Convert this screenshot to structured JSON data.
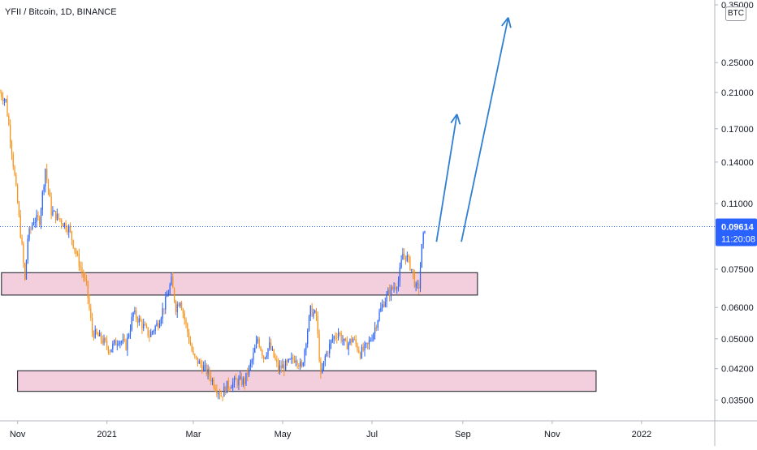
{
  "chart_data": {
    "type": "candlestick",
    "title": "YFII / Bitcoin, 1D, BINANCE",
    "currency": "BTC",
    "y_scale": "log",
    "ylim": [
      0.031,
      0.36
    ],
    "y_ticks": [
      {
        "value": 0.035,
        "label": "0.03500"
      },
      {
        "value": 0.042,
        "label": "0.04200"
      },
      {
        "value": 0.05,
        "label": "0.05000"
      },
      {
        "value": 0.06,
        "label": "0.06000"
      },
      {
        "value": 0.075,
        "label": "0.07500"
      },
      {
        "value": 0.11,
        "label": "0.11000"
      },
      {
        "value": 0.14,
        "label": "0.14000"
      },
      {
        "value": 0.17,
        "label": "0.17000"
      },
      {
        "value": 0.21,
        "label": "0.21000"
      },
      {
        "value": 0.25,
        "label": "0.25000"
      },
      {
        "value": 0.35,
        "label": "0.35000"
      }
    ],
    "x_start": "2020-10-20",
    "x_end": "2022-02-20",
    "x_ticks": [
      {
        "date": "2020-11-01",
        "label": "Nov"
      },
      {
        "date": "2021-01-01",
        "label": "2021"
      },
      {
        "date": "2021-03-01",
        "label": "Mar"
      },
      {
        "date": "2021-05-01",
        "label": "May"
      },
      {
        "date": "2021-07-01",
        "label": "Jul"
      },
      {
        "date": "2021-09-01",
        "label": "Sep"
      },
      {
        "date": "2021-11-01",
        "label": "Nov"
      },
      {
        "date": "2022-01-01",
        "label": "2022"
      }
    ],
    "last_price": {
      "value": 0.09614,
      "label": "0.09614",
      "countdown": "11:20:08"
    },
    "price_path": [
      [
        "2020-10-20",
        0.21
      ],
      [
        "2020-10-24",
        0.2
      ],
      [
        "2020-10-28",
        0.15
      ],
      [
        "2020-11-01",
        0.11
      ],
      [
        "2020-11-04",
        0.085
      ],
      [
        "2020-11-06",
        0.07
      ],
      [
        "2020-11-08",
        0.09
      ],
      [
        "2020-11-12",
        0.1
      ],
      [
        "2020-11-16",
        0.1
      ],
      [
        "2020-11-20",
        0.135
      ],
      [
        "2020-11-24",
        0.105
      ],
      [
        "2020-11-30",
        0.1
      ],
      [
        "2020-12-06",
        0.095
      ],
      [
        "2020-12-12",
        0.08
      ],
      [
        "2020-12-18",
        0.068
      ],
      [
        "2020-12-22",
        0.052
      ],
      [
        "2020-12-28",
        0.05
      ],
      [
        "2021-01-03",
        0.047
      ],
      [
        "2021-01-09",
        0.05
      ],
      [
        "2021-01-14",
        0.048
      ],
      [
        "2021-01-19",
        0.058
      ],
      [
        "2021-01-24",
        0.055
      ],
      [
        "2021-01-30",
        0.051
      ],
      [
        "2021-02-05",
        0.055
      ],
      [
        "2021-02-10",
        0.062
      ],
      [
        "2021-02-14",
        0.07
      ],
      [
        "2021-02-17",
        0.06
      ],
      [
        "2021-02-20",
        0.063
      ],
      [
        "2021-02-26",
        0.05
      ],
      [
        "2021-03-01",
        0.045
      ],
      [
        "2021-03-06",
        0.043
      ],
      [
        "2021-03-11",
        0.041
      ],
      [
        "2021-03-16",
        0.038
      ],
      [
        "2021-03-20",
        0.036
      ],
      [
        "2021-03-24",
        0.038
      ],
      [
        "2021-03-30",
        0.039
      ],
      [
        "2021-04-05",
        0.039
      ],
      [
        "2021-04-10",
        0.044
      ],
      [
        "2021-04-14",
        0.05
      ],
      [
        "2021-04-18",
        0.045
      ],
      [
        "2021-04-22",
        0.048
      ],
      [
        "2021-04-28",
        0.042
      ],
      [
        "2021-05-04",
        0.043
      ],
      [
        "2021-05-10",
        0.045
      ],
      [
        "2021-05-14",
        0.042
      ],
      [
        "2021-05-17",
        0.05
      ],
      [
        "2021-05-20",
        0.059
      ],
      [
        "2021-05-24",
        0.057
      ],
      [
        "2021-05-27",
        0.04
      ],
      [
        "2021-05-30",
        0.045
      ],
      [
        "2021-06-04",
        0.05
      ],
      [
        "2021-06-08",
        0.052
      ],
      [
        "2021-06-13",
        0.048
      ],
      [
        "2021-06-18",
        0.05
      ],
      [
        "2021-06-23",
        0.046
      ],
      [
        "2021-06-28",
        0.048
      ],
      [
        "2021-07-02",
        0.052
      ],
      [
        "2021-07-06",
        0.058
      ],
      [
        "2021-07-09",
        0.062
      ],
      [
        "2021-07-12",
        0.065
      ],
      [
        "2021-07-15",
        0.067
      ],
      [
        "2021-07-19",
        0.07
      ],
      [
        "2021-07-22",
        0.082
      ],
      [
        "2021-07-25",
        0.08
      ],
      [
        "2021-07-28",
        0.075
      ],
      [
        "2021-07-31",
        0.067
      ],
      [
        "2021-08-02",
        0.068
      ],
      [
        "2021-08-04",
        0.085
      ],
      [
        "2021-08-06",
        0.096
      ]
    ],
    "zones": [
      {
        "from": "2020-10-21",
        "to": "2021-09-11",
        "low": 0.0645,
        "high": 0.0735
      },
      {
        "from": "2020-11-01",
        "to": "2021-12-01",
        "low": 0.0368,
        "high": 0.0415
      }
    ],
    "arrows": [
      {
        "from": [
          "2021-08-14",
          0.088
        ],
        "to": [
          "2021-08-28",
          0.185
        ]
      },
      {
        "from": [
          "2021-08-31",
          0.088
        ],
        "to": [
          "2021-10-02",
          0.325
        ]
      }
    ]
  }
}
